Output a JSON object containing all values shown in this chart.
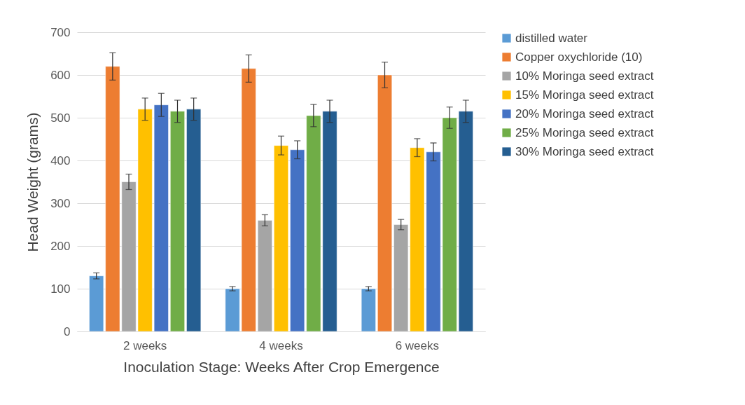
{
  "chart_data": {
    "type": "bar",
    "xlabel": "Inoculation Stage: Weeks After Crop Emergence",
    "ylabel": "Head Weight (grams)",
    "categories": [
      "2 weeks",
      "4 weeks",
      "6 weeks"
    ],
    "ylim": [
      0,
      700
    ],
    "yticks": [
      0,
      100,
      200,
      300,
      400,
      500,
      600,
      700
    ],
    "grid": "y",
    "legend": "right",
    "series": [
      {
        "name": "distilled water",
        "color": "#5b9bd5",
        "values": [
          130,
          100,
          100
        ],
        "errors": [
          7,
          5,
          5
        ]
      },
      {
        "name": "Copper oxychloride (10)",
        "color": "#ed7d31",
        "values": [
          620,
          615,
          600
        ],
        "errors": [
          32,
          32,
          30
        ]
      },
      {
        "name": "10% Moringa seed extract",
        "color": "#a5a5a5",
        "values": [
          350,
          260,
          250
        ],
        "errors": [
          18,
          13,
          12
        ]
      },
      {
        "name": "15% Moringa seed extract",
        "color": "#ffc000",
        "values": [
          520,
          435,
          430
        ],
        "errors": [
          26,
          22,
          21
        ]
      },
      {
        "name": "20% Moringa seed extract",
        "color": "#4472c4",
        "values": [
          530,
          425,
          420
        ],
        "errors": [
          27,
          21,
          21
        ]
      },
      {
        "name": "25% Moringa seed extract",
        "color": "#70ad47",
        "values": [
          515,
          505,
          500
        ],
        "errors": [
          26,
          26,
          25
        ]
      },
      {
        "name": "30% Moringa seed extract",
        "color": "#255e91",
        "values": [
          520,
          515,
          515
        ],
        "errors": [
          26,
          26,
          26
        ]
      }
    ]
  }
}
